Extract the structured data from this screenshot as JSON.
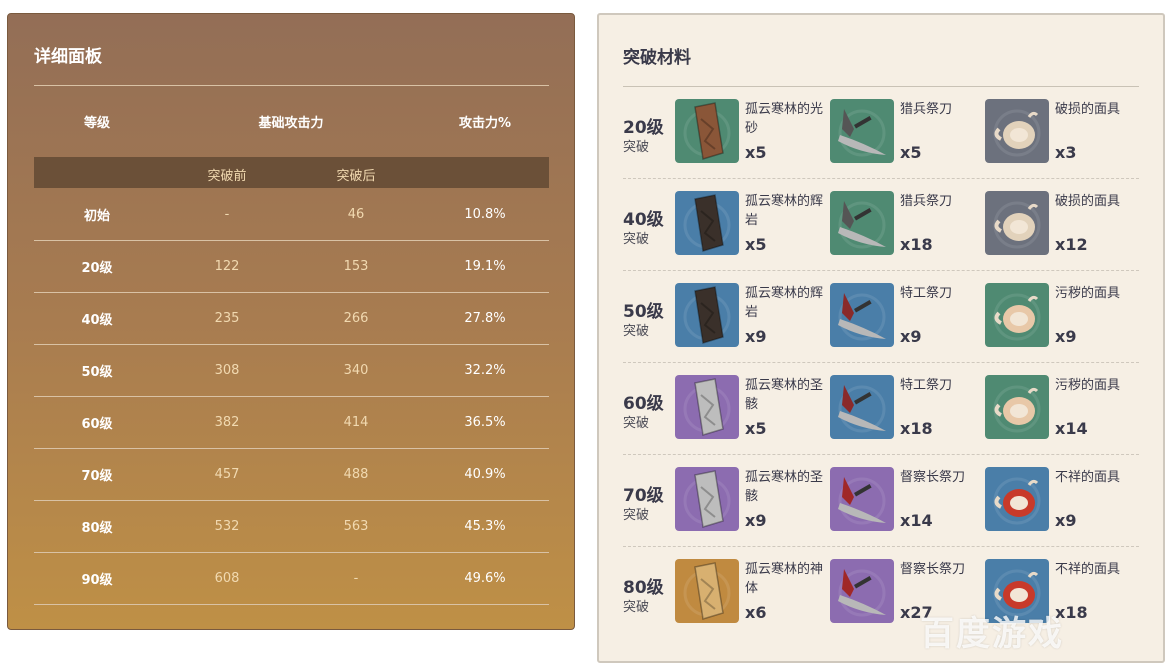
{
  "detail_panel": {
    "title": "详细面板",
    "headers": {
      "level": "等级",
      "base_atk": "基础攻击力",
      "atk_pct": "攻击力%"
    },
    "subheaders": {
      "before": "突破前",
      "after": "突破后"
    },
    "rows": [
      {
        "level": "初始",
        "before": "-",
        "after": "46",
        "atk_pct": "10.8%"
      },
      {
        "level": "20级",
        "before": "122",
        "after": "153",
        "atk_pct": "19.1%"
      },
      {
        "level": "40级",
        "before": "235",
        "after": "266",
        "atk_pct": "27.8%"
      },
      {
        "level": "50级",
        "before": "308",
        "after": "340",
        "atk_pct": "32.2%"
      },
      {
        "level": "60级",
        "before": "382",
        "after": "414",
        "atk_pct": "36.5%"
      },
      {
        "level": "70级",
        "before": "457",
        "after": "488",
        "atk_pct": "40.9%"
      },
      {
        "level": "80级",
        "before": "532",
        "after": "563",
        "atk_pct": "45.3%"
      },
      {
        "level": "90级",
        "before": "608",
        "after": "-",
        "atk_pct": "49.6%"
      }
    ]
  },
  "materials_panel": {
    "title": "突破材料",
    "rows": [
      {
        "level": "20级",
        "label": "突破",
        "items": [
          {
            "name": "孤云寒林的光砂",
            "qty": "x5",
            "icon": "slab-icon",
            "color": "#4f8a72",
            "fg": "#8a5638"
          },
          {
            "name": "猎兵祭刀",
            "qty": "x5",
            "icon": "blade-icon",
            "color": "#4f8a72",
            "fg": "#555"
          },
          {
            "name": "破损的面具",
            "qty": "x3",
            "icon": "mask-icon",
            "color": "#6c717d",
            "fg": "#e2d2bb"
          }
        ]
      },
      {
        "level": "40级",
        "label": "突破",
        "items": [
          {
            "name": "孤云寒林的辉岩",
            "qty": "x5",
            "icon": "slab-icon",
            "color": "#4a7ea8",
            "fg": "#3a302a"
          },
          {
            "name": "猎兵祭刀",
            "qty": "x18",
            "icon": "blade-icon",
            "color": "#4f8a72",
            "fg": "#555"
          },
          {
            "name": "破损的面具",
            "qty": "x12",
            "icon": "mask-icon",
            "color": "#6c717d",
            "fg": "#e2d2bb"
          }
        ]
      },
      {
        "level": "50级",
        "label": "突破",
        "items": [
          {
            "name": "孤云寒林的辉岩",
            "qty": "x9",
            "icon": "slab-icon",
            "color": "#4a7ea8",
            "fg": "#3a302a"
          },
          {
            "name": "特工祭刀",
            "qty": "x9",
            "icon": "blade-icon",
            "color": "#4a7ea8",
            "fg": "#8a2a2a"
          },
          {
            "name": "污秽的面具",
            "qty": "x9",
            "icon": "mask-icon",
            "color": "#4f8a72",
            "fg": "#e8c8a8"
          }
        ]
      },
      {
        "level": "60级",
        "label": "突破",
        "items": [
          {
            "name": "孤云寒林的圣骸",
            "qty": "x5",
            "icon": "slab-icon",
            "color": "#8c6cb0",
            "fg": "#bdbdbd"
          },
          {
            "name": "特工祭刀",
            "qty": "x18",
            "icon": "blade-icon",
            "color": "#4a7ea8",
            "fg": "#8a2a2a"
          },
          {
            "name": "污秽的面具",
            "qty": "x14",
            "icon": "mask-icon",
            "color": "#4f8a72",
            "fg": "#e8c8a8"
          }
        ]
      },
      {
        "level": "70级",
        "label": "突破",
        "items": [
          {
            "name": "孤云寒林的圣骸",
            "qty": "x9",
            "icon": "slab-icon",
            "color": "#8c6cb0",
            "fg": "#bdbdbd"
          },
          {
            "name": "督察长祭刀",
            "qty": "x14",
            "icon": "blade-icon",
            "color": "#8c6cb0",
            "fg": "#a02828"
          },
          {
            "name": "不祥的面具",
            "qty": "x9",
            "icon": "mask-icon",
            "color": "#4a7ea8",
            "fg": "#c83a2a"
          }
        ]
      },
      {
        "level": "80级",
        "label": "突破",
        "items": [
          {
            "name": "孤云寒林的神体",
            "qty": "x6",
            "icon": "slab-icon",
            "color": "#c08a40",
            "fg": "#d8b070"
          },
          {
            "name": "督察长祭刀",
            "qty": "x27",
            "icon": "blade-icon",
            "color": "#8c6cb0",
            "fg": "#a02828"
          },
          {
            "name": "不祥的面具",
            "qty": "x18",
            "icon": "mask-icon",
            "color": "#4a7ea8",
            "fg": "#c83a2a"
          }
        ]
      }
    ]
  },
  "watermark": "百度游戏"
}
